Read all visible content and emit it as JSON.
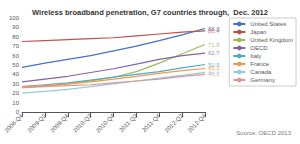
{
  "chart_data": {
    "type": "line",
    "title": "Wireless broadband penetration, G7 countries through,  Dec. 2012",
    "source": "Source: OECD 2013",
    "categories": [
      "2008-Q4",
      "2009-Q2",
      "2009-Q4",
      "2010-Q2",
      "2010-Q4",
      "2011-Q2",
      "2011-Q4",
      "2012-Q2",
      "2012-Q4"
    ],
    "series": [
      {
        "name": "United States",
        "color": "#4472C4",
        "values": [
          47.5,
          52,
          56,
          60,
          65,
          70,
          76,
          82,
          88.8
        ]
      },
      {
        "name": "Japan",
        "color": "#C0504D",
        "values": [
          75,
          76,
          77,
          78,
          79,
          81,
          83,
          85,
          86.4
        ]
      },
      {
        "name": "United Kingdom",
        "color": "#9BBB59",
        "values": [
          26,
          28,
          30,
          33,
          37,
          43,
          52,
          62,
          71.8
        ]
      },
      {
        "name": "OECD",
        "color": "#8064A2",
        "values": [
          32,
          35,
          38,
          42,
          46,
          51,
          56,
          60,
          62.7
        ]
      },
      {
        "name": "Italy",
        "color": "#4BACC6",
        "values": [
          27,
          29,
          31,
          34,
          37,
          40,
          43,
          47,
          50.5
        ]
      },
      {
        "name": "France",
        "color": "#F79646",
        "values": [
          27,
          28,
          30,
          32,
          35,
          38,
          41,
          44,
          46.3
        ]
      },
      {
        "name": "Canada",
        "color": "#92CDDC",
        "values": [
          20,
          22,
          24,
          27,
          30,
          33,
          36,
          39,
          42.1
        ]
      },
      {
        "name": "Germany",
        "color": "#D99694",
        "values": [
          26,
          27,
          28,
          29,
          31,
          33,
          35,
          38,
          40.1
        ]
      }
    ],
    "annotations": [
      {
        "text": "88.8",
        "x": "2012-Q4",
        "y": 88.8,
        "color": "#4472C4"
      },
      {
        "text": "86.4",
        "x": "2012-Q4",
        "y": 86.4,
        "color": "#C0504D"
      },
      {
        "text": "71.8",
        "x": "2012-Q4",
        "y": 71.8,
        "color": "#9BBB59"
      },
      {
        "text": "62.7",
        "x": "2012-Q4",
        "y": 62.7,
        "color": "#8064A2"
      },
      {
        "text": "50.5",
        "x": "2012-Q4",
        "y": 50.5,
        "color": "#4BACC6"
      },
      {
        "text": "46.3",
        "x": "2012-Q4",
        "y": 46.3,
        "color": "#F79646"
      },
      {
        "text": "42.1",
        "x": "2012-Q4",
        "y": 42.1,
        "color": "#92CDDC"
      },
      {
        "text": "40.1",
        "x": "2012-Q4",
        "y": 40.1,
        "color": "#D99694"
      }
    ],
    "ylim": [
      0,
      100
    ],
    "yticks": [
      0,
      10,
      20,
      30,
      40,
      50,
      60,
      70,
      80,
      90,
      100
    ],
    "grid": false,
    "legend": "right"
  }
}
